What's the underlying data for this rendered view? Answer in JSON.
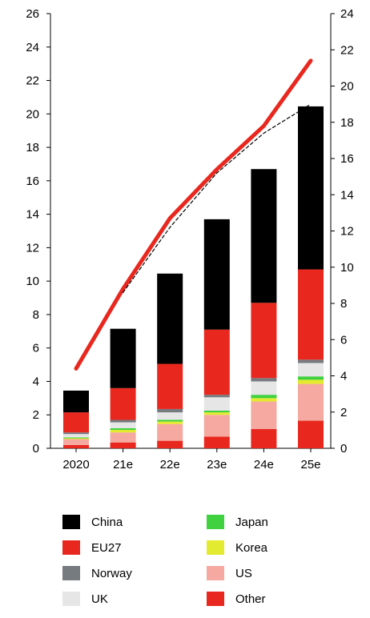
{
  "chart_data": {
    "type": "bar",
    "stacked": true,
    "categories": [
      "2020",
      "21e",
      "22e",
      "23e",
      "24e",
      "25e"
    ],
    "left_axis": {
      "ticks": [
        0,
        2,
        4,
        6,
        8,
        10,
        12,
        14,
        16,
        18,
        20,
        22,
        24,
        26
      ],
      "ylim": [
        0,
        26
      ]
    },
    "right_axis": {
      "ticks": [
        0,
        2,
        4,
        6,
        8,
        10,
        12,
        14,
        16,
        18,
        20,
        22,
        24
      ],
      "ylim": [
        0,
        24
      ]
    },
    "series": [
      {
        "name": "Other",
        "color": "#e8281e",
        "values": [
          0.2,
          0.35,
          0.45,
          0.7,
          1.15,
          1.65
        ]
      },
      {
        "name": "US",
        "color": "#f5a9a0",
        "values": [
          0.35,
          0.6,
          1.0,
          1.3,
          1.65,
          2.2
        ]
      },
      {
        "name": "Korea",
        "color": "#e4ea2f",
        "values": [
          0.05,
          0.15,
          0.15,
          0.15,
          0.2,
          0.25
        ]
      },
      {
        "name": "Japan",
        "color": "#3fd13f",
        "values": [
          0.05,
          0.1,
          0.1,
          0.1,
          0.2,
          0.2
        ]
      },
      {
        "name": "UK",
        "color": "#e6e6e6",
        "values": [
          0.2,
          0.35,
          0.45,
          0.8,
          0.8,
          0.8
        ]
      },
      {
        "name": "Norway",
        "color": "#767b80",
        "values": [
          0.1,
          0.15,
          0.2,
          0.15,
          0.2,
          0.2
        ]
      },
      {
        "name": "EU27",
        "color": "#e8281e",
        "values": [
          1.2,
          1.9,
          2.7,
          3.9,
          4.5,
          5.4
        ]
      },
      {
        "name": "China",
        "color": "#000000",
        "values": [
          1.3,
          3.55,
          5.4,
          6.6,
          8.0,
          9.75
        ]
      }
    ],
    "line_series": [
      {
        "axis": "right",
        "style": "solid",
        "color": "#e8281e",
        "values": [
          4.4,
          8.8,
          12.7,
          15.4,
          17.8,
          21.4
        ]
      },
      {
        "axis": "right",
        "style": "dashed",
        "color": "#000000",
        "values": [
          null,
          8.6,
          12.2,
          15.2,
          17.4,
          19.0
        ]
      }
    ],
    "legend": {
      "placement": "bottom",
      "left_column": [
        "China",
        "EU27",
        "Norway",
        "UK"
      ],
      "right_column": [
        "Japan",
        "Korea",
        "US",
        "Other"
      ]
    }
  }
}
